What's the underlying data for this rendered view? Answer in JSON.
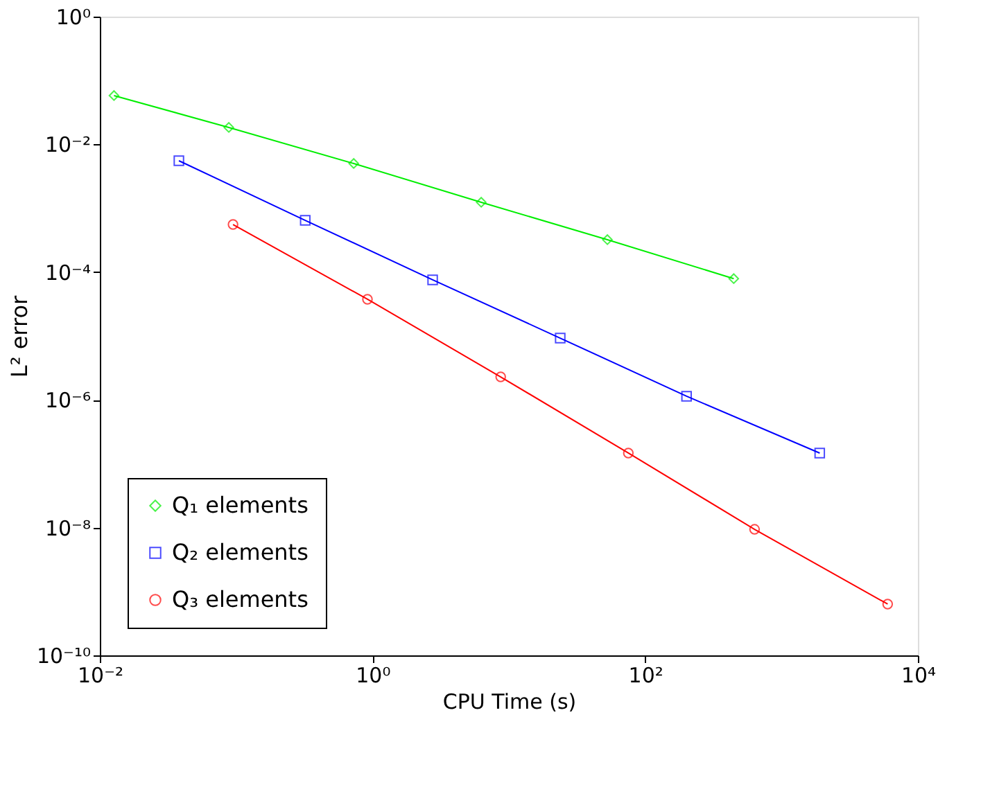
{
  "chart_data": {
    "type": "line",
    "xlabel": "CPU Time (s)",
    "ylabel": "L² error",
    "log": "xy",
    "grid": false,
    "legend": "bottom left",
    "xlim": [
      0.01,
      10000
    ],
    "ylim": [
      1e-10,
      1
    ],
    "xticks": [
      {
        "value": 0.01,
        "label": "10⁻²"
      },
      {
        "value": 1,
        "label": "10⁰"
      },
      {
        "value": 100,
        "label": "10²"
      },
      {
        "value": 10000,
        "label": "10⁴"
      }
    ],
    "yticks": [
      {
        "value": 1e-10,
        "label": "10⁻¹⁰"
      },
      {
        "value": 1e-08,
        "label": "10⁻⁸"
      },
      {
        "value": 1e-06,
        "label": "10⁻⁶"
      },
      {
        "value": 0.0001,
        "label": "10⁻⁴"
      },
      {
        "value": 0.01,
        "label": "10⁻²"
      },
      {
        "value": 1,
        "label": "10⁰"
      }
    ],
    "series": [
      {
        "name": "Q₁ elements",
        "color": "#00ee00",
        "marker": "diamond",
        "x": [
          0.0127,
          0.0883,
          0.728,
          6.27,
          52.8,
          446
        ],
        "values": [
          0.0581,
          0.0184,
          0.00502,
          0.00124,
          0.000322,
          7.9e-05
        ]
      },
      {
        "name": "Q₂ elements",
        "color": "#0000ff",
        "marker": "square",
        "x": [
          0.038,
          0.321,
          2.76,
          23.8,
          201,
          1905
        ],
        "values": [
          0.00555,
          0.000647,
          7.57e-05,
          9.27e-06,
          1.14e-06,
          1.47e-07
        ]
      },
      {
        "name": "Q₃ elements",
        "color": "#ff0000",
        "marker": "circle",
        "x": [
          0.0948,
          0.918,
          8.71,
          75.2,
          634,
          6000
        ],
        "values": [
          0.000557,
          3.76e-05,
          2.29e-06,
          1.47e-07,
          9.4e-09,
          6.35e-10
        ]
      }
    ]
  }
}
